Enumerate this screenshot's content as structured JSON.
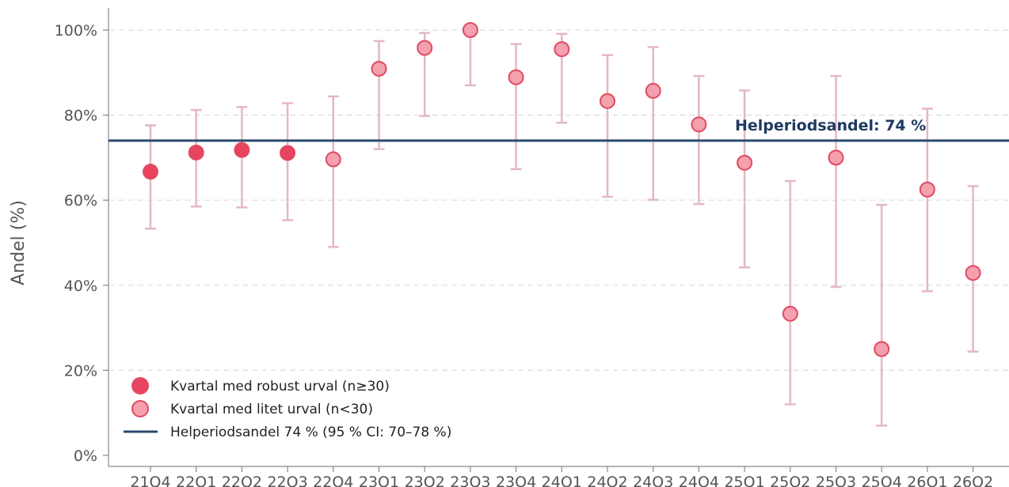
{
  "chart_data": {
    "type": "scatter",
    "title": "",
    "xlabel": "",
    "ylabel": "Andel (%)",
    "ylim": [
      0,
      100
    ],
    "yticks": [
      0,
      20,
      40,
      60,
      80,
      100
    ],
    "ytick_labels": [
      "0%",
      "20%",
      "40%",
      "60%",
      "80%",
      "100%"
    ],
    "grid": "horizontal dashed",
    "categories": [
      "21Q4",
      "22Q1",
      "22Q2",
      "22Q3",
      "22Q4",
      "23Q1",
      "23Q2",
      "23Q3",
      "23Q4",
      "24Q1",
      "24Q2",
      "24Q3",
      "24Q4",
      "25Q1",
      "25Q2",
      "25Q3",
      "25Q4",
      "26Q1",
      "26Q2"
    ],
    "values": [
      66.7,
      71.2,
      71.8,
      71.1,
      69.6,
      90.9,
      95.8,
      100,
      88.9,
      95.5,
      83.3,
      85.7,
      77.8,
      68.8,
      33.3,
      70.0,
      25.0,
      62.5,
      42.9
    ],
    "ci_lower": [
      53.3,
      58.5,
      58.3,
      55.3,
      49.0,
      72.0,
      79.8,
      87.0,
      67.3,
      78.2,
      60.8,
      60.1,
      59.1,
      44.2,
      12.0,
      39.6,
      7.0,
      38.6,
      24.4
    ],
    "ci_upper": [
      77.6,
      81.2,
      81.9,
      82.8,
      84.4,
      97.4,
      99.3,
      100,
      96.7,
      99.1,
      94.1,
      96.0,
      89.2,
      85.8,
      64.5,
      89.2,
      58.9,
      81.5,
      63.3
    ],
    "robust": [
      true,
      true,
      true,
      true,
      false,
      false,
      false,
      false,
      false,
      false,
      false,
      false,
      false,
      false,
      false,
      false,
      false,
      false,
      false
    ],
    "reference_line": {
      "value": 74,
      "label": "Helperiodsandel: 74 %"
    },
    "legend": {
      "placement": "lower-left",
      "items": [
        "Kvartal med robust urval (n≥30)",
        "Kvartal med litet urval (n<30)",
        "Helperiodsandel 74 % (95 % CI: 70–78 %)"
      ]
    },
    "colors": {
      "robust_fill": "#e8435f",
      "small_fill": "#f4a0ad",
      "marker_edge": "#e04a63",
      "errorbar": "#e3b9c1",
      "reference_line": "#2b4a6e",
      "reference_label": "#1f3a60",
      "grid": "#dddddd",
      "axis": "#888888",
      "text": "#555555"
    }
  }
}
